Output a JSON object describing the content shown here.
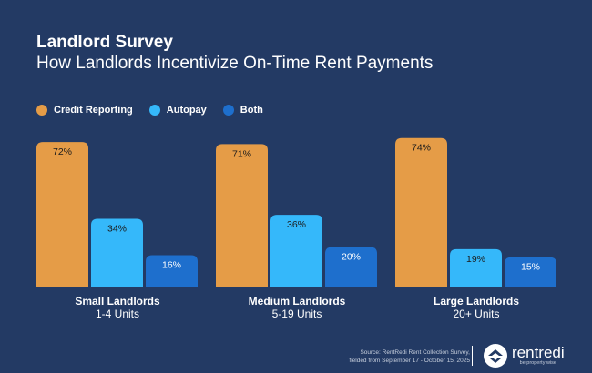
{
  "chart_data": {
    "type": "bar",
    "title": "Landlord Survey",
    "subtitle": "How Landlords Incentivize On-Time Rent Payments",
    "categories": [
      {
        "name": "Small Landlords",
        "sub": "1-4 Units"
      },
      {
        "name": "Medium Landlords",
        "sub": "5-19 Units"
      },
      {
        "name": "Large Landlords",
        "sub": "20+ Units"
      }
    ],
    "series": [
      {
        "name": "Credit Reporting",
        "color": "#e59c47",
        "label_color": "#1b1b1b",
        "values": [
          72,
          71,
          74
        ]
      },
      {
        "name": "Autopay",
        "color": "#35b8fa",
        "label_color": "#1b1b1b",
        "values": [
          34,
          36,
          19
        ]
      },
      {
        "name": "Both",
        "color": "#1e6fcd",
        "label_color": "#ffffff",
        "values": [
          16,
          20,
          15
        ]
      }
    ],
    "value_suffix": "%",
    "legend_position": "top-left",
    "grid": false,
    "ylim": [
      0,
      100
    ]
  },
  "footer": {
    "source_line1": "Source: RentRedi Rent Collection Survey,",
    "source_line2": "fielded from September 17 - October 15, 2025",
    "brand": "rentredi",
    "tagline": "be property wise"
  }
}
